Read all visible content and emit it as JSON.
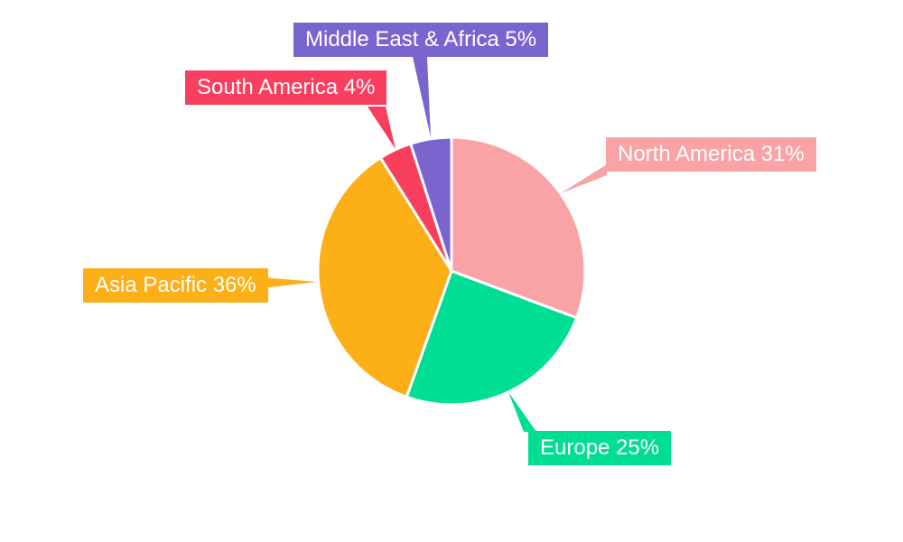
{
  "chart_data": {
    "type": "pie",
    "title": "",
    "categories": [
      "North America",
      "Europe",
      "Asia Pacific",
      "South America",
      "Middle East & Africa"
    ],
    "values": [
      31,
      25,
      36,
      4,
      5
    ],
    "unit": "%",
    "colors": [
      "#F9A3A7",
      "#00DE96",
      "#FCAF17",
      "#FA3E5D",
      "#7A64CE"
    ],
    "slice_border_color": "#FFFFFF",
    "label_text_color": "#FFFFFF",
    "background": "#FFFFFF",
    "start_angle_deg": 0,
    "direction": "clockwise",
    "legend": "none",
    "labels": [
      "North America 31%",
      "Europe 25%",
      "Asia Pacific 36%",
      "South America 4%",
      "Middle East & Africa 5%"
    ]
  }
}
